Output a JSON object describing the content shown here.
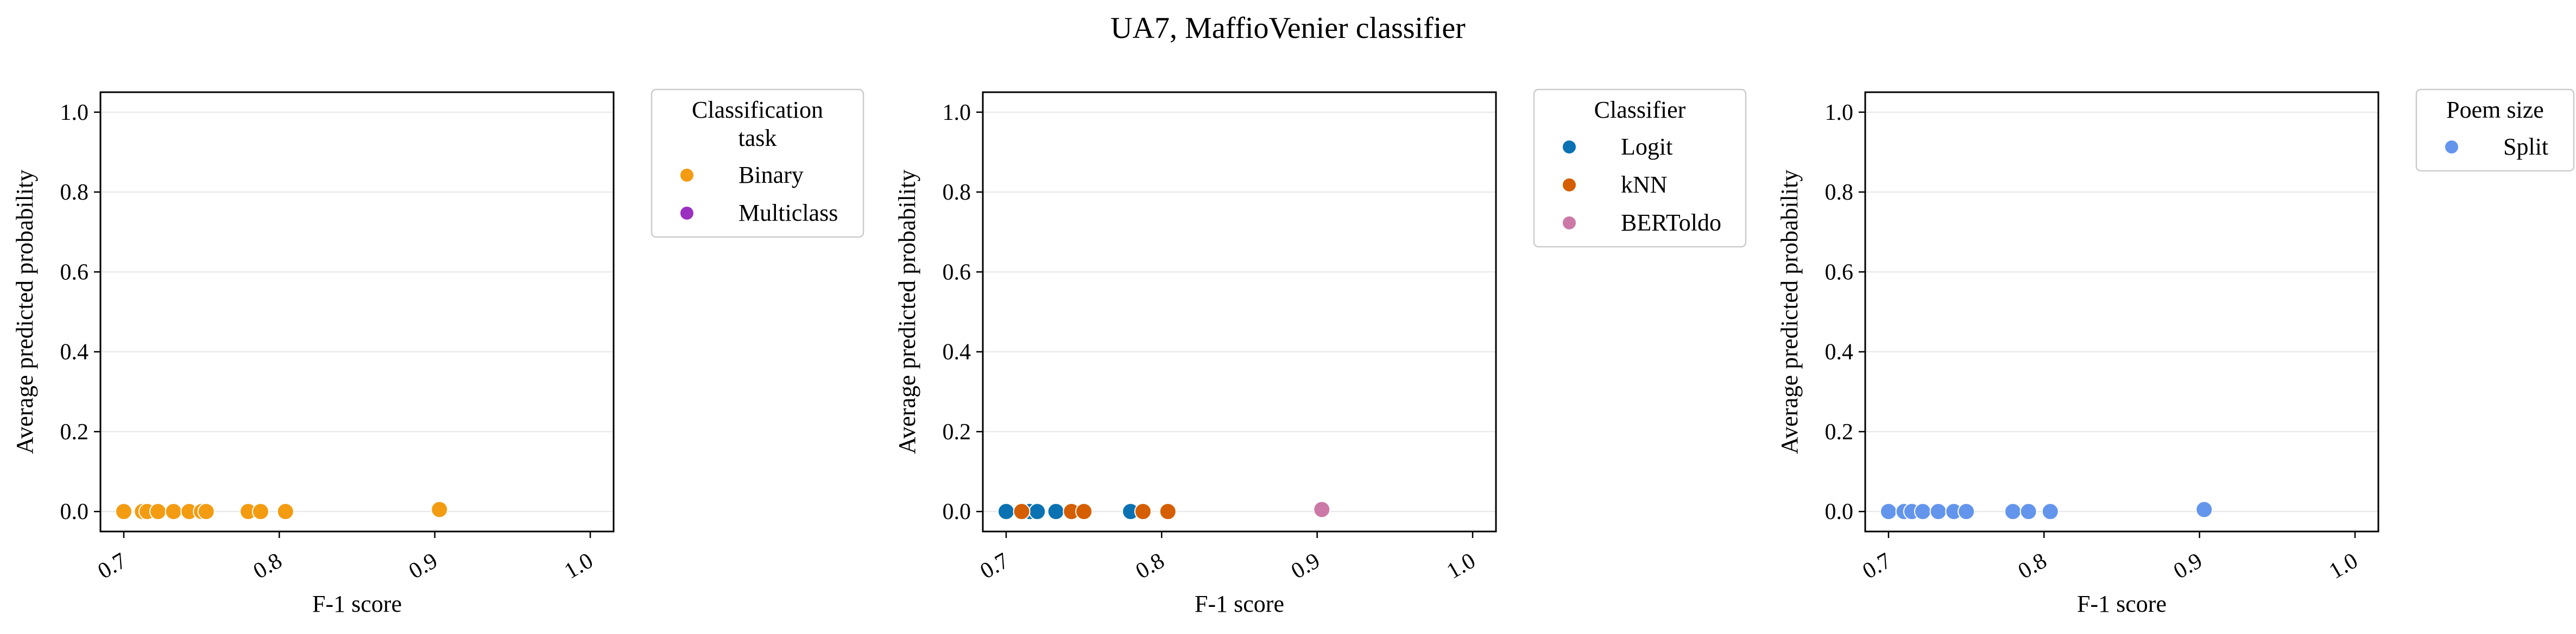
{
  "figure": {
    "title": "UA7, MaffioVenier classifier"
  },
  "chart_data": [
    {
      "type": "scatter",
      "xlabel": "F-1 score",
      "ylabel": "Average predicted probability",
      "xlim": [
        0.685,
        1.015
      ],
      "ylim": [
        -0.05,
        1.05
      ],
      "x_ticks": [
        "0.7",
        "0.8",
        "0.9",
        "1.0"
      ],
      "y_ticks": [
        "0.0",
        "0.2",
        "0.4",
        "0.6",
        "0.8",
        "1.0"
      ],
      "grid": "horizontal",
      "legend": {
        "title": [
          "Classification",
          "task"
        ],
        "placement": "outside-right",
        "entries": [
          {
            "label": "Binary",
            "color": "#f39c12"
          },
          {
            "label": "Multiclass",
            "color": "#9b30c0"
          }
        ]
      },
      "series": [
        {
          "name": "Binary",
          "color": "#f39c12",
          "points": [
            [
              0.7,
              0.0
            ],
            [
              0.712,
              0.0
            ],
            [
              0.715,
              0.0
            ],
            [
              0.722,
              0.0
            ],
            [
              0.732,
              0.0
            ],
            [
              0.742,
              0.0
            ],
            [
              0.75,
              0.0
            ],
            [
              0.753,
              0.0
            ],
            [
              0.78,
              0.0
            ],
            [
              0.788,
              0.0
            ],
            [
              0.804,
              0.0
            ],
            [
              0.903,
              0.005
            ]
          ]
        },
        {
          "name": "Multiclass",
          "color": "#9b30c0",
          "points": []
        }
      ]
    },
    {
      "type": "scatter",
      "xlabel": "F-1 score",
      "ylabel": "Average predicted probability",
      "xlim": [
        0.685,
        1.015
      ],
      "ylim": [
        -0.05,
        1.05
      ],
      "x_ticks": [
        "0.7",
        "0.8",
        "0.9",
        "1.0"
      ],
      "y_ticks": [
        "0.0",
        "0.2",
        "0.4",
        "0.6",
        "0.8",
        "1.0"
      ],
      "grid": "horizontal",
      "legend": {
        "title": [
          "Classifier"
        ],
        "placement": "outside-right",
        "entries": [
          {
            "label": "Logit",
            "color": "#0a72b2"
          },
          {
            "label": "kNN",
            "color": "#d55e00"
          },
          {
            "label": "BERToldo",
            "color": "#cc79a7"
          }
        ]
      },
      "series": [
        {
          "name": "Logit",
          "color": "#0a72b2",
          "points": [
            [
              0.7,
              0.0
            ],
            [
              0.715,
              0.0
            ],
            [
              0.72,
              0.0
            ],
            [
              0.732,
              0.0
            ],
            [
              0.78,
              0.0
            ]
          ]
        },
        {
          "name": "kNN",
          "color": "#d55e00",
          "points": [
            [
              0.71,
              0.0
            ],
            [
              0.742,
              0.0
            ],
            [
              0.75,
              0.0
            ],
            [
              0.788,
              0.0
            ],
            [
              0.804,
              0.0
            ]
          ]
        },
        {
          "name": "BERToldo",
          "color": "#cc79a7",
          "points": [
            [
              0.903,
              0.005
            ]
          ]
        }
      ]
    },
    {
      "type": "scatter",
      "xlabel": "F-1 score",
      "ylabel": "Average predicted probability",
      "xlim": [
        0.685,
        1.015
      ],
      "ylim": [
        -0.05,
        1.05
      ],
      "x_ticks": [
        "0.7",
        "0.8",
        "0.9",
        "1.0"
      ],
      "y_ticks": [
        "0.0",
        "0.2",
        "0.4",
        "0.6",
        "0.8",
        "1.0"
      ],
      "grid": "horizontal",
      "legend": {
        "title": [
          "Poem size"
        ],
        "placement": "outside-right",
        "entries": [
          {
            "label": "Split",
            "color": "#6495ed"
          }
        ]
      },
      "series": [
        {
          "name": "Split",
          "color": "#6495ed",
          "points": [
            [
              0.7,
              0.0
            ],
            [
              0.71,
              0.0
            ],
            [
              0.715,
              0.0
            ],
            [
              0.722,
              0.0
            ],
            [
              0.732,
              0.0
            ],
            [
              0.742,
              0.0
            ],
            [
              0.75,
              0.0
            ],
            [
              0.78,
              0.0
            ],
            [
              0.79,
              0.0
            ],
            [
              0.804,
              0.0
            ],
            [
              0.903,
              0.005
            ]
          ]
        }
      ]
    }
  ]
}
